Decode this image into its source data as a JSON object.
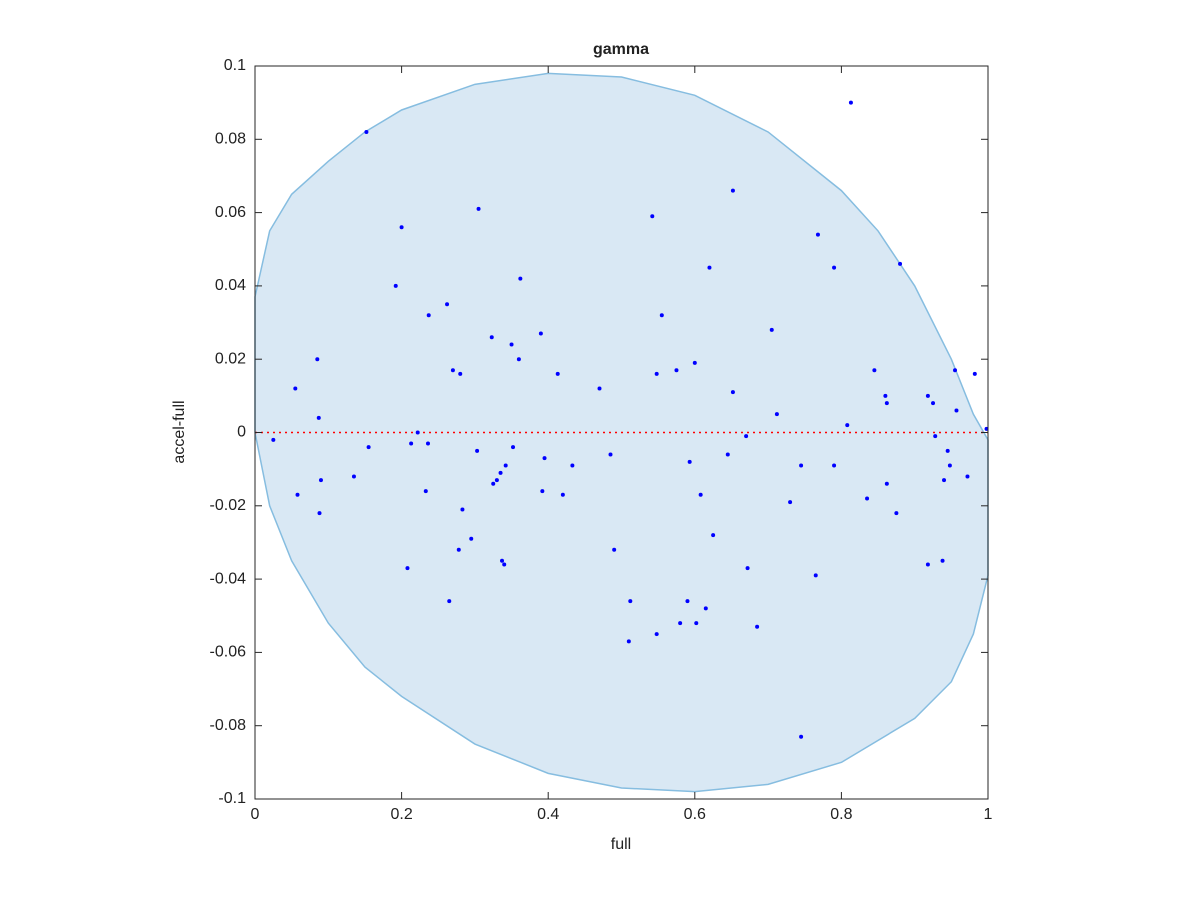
{
  "chart_data": {
    "type": "scatter",
    "title": "gamma",
    "x_label": "full",
    "y_label": "accel-full",
    "xlim": [
      0,
      1
    ],
    "ylim": [
      -0.1,
      0.1
    ],
    "xticks": [
      0,
      0.2,
      0.4,
      0.6,
      0.8,
      1
    ],
    "yticks": [
      -0.1,
      -0.08,
      -0.06,
      -0.04,
      -0.02,
      0,
      0.02,
      0.04,
      0.06,
      0.08,
      0.1
    ],
    "region": {
      "color": "#d9e8f4",
      "edge_color": "#86bde0",
      "x": [
        0,
        0.02,
        0.05,
        0.1,
        0.15,
        0.2,
        0.3,
        0.4,
        0.5,
        0.6,
        0.7,
        0.8,
        0.85,
        0.9,
        0.95,
        0.98,
        1,
        1,
        0.98,
        0.95,
        0.9,
        0.8,
        0.7,
        0.6,
        0.5,
        0.4,
        0.3,
        0.2,
        0.15,
        0.1,
        0.05,
        0.02,
        0
      ],
      "y": [
        0.037,
        0.055,
        0.065,
        0.074,
        0.082,
        0.088,
        0.095,
        0.098,
        0.097,
        0.092,
        0.082,
        0.066,
        0.055,
        0.04,
        0.02,
        0.005,
        -0.002,
        -0.039,
        -0.055,
        -0.068,
        -0.078,
        -0.09,
        -0.096,
        -0.098,
        -0.097,
        -0.093,
        -0.085,
        -0.072,
        -0.064,
        -0.052,
        -0.035,
        -0.02,
        0
      ]
    },
    "reference_line": {
      "y": 0,
      "color": "#ff0000"
    },
    "points": {
      "color": "#0000ff",
      "x": [
        0.025,
        0.055,
        0.058,
        0.085,
        0.087,
        0.088,
        0.09,
        0.135,
        0.152,
        0.155,
        0.192,
        0.2,
        0.208,
        0.213,
        0.222,
        0.233,
        0.236,
        0.237,
        0.262,
        0.265,
        0.27,
        0.278,
        0.28,
        0.283,
        0.295,
        0.303,
        0.305,
        0.323,
        0.325,
        0.33,
        0.335,
        0.337,
        0.34,
        0.342,
        0.35,
        0.352,
        0.36,
        0.362,
        0.39,
        0.392,
        0.395,
        0.413,
        0.42,
        0.433,
        0.47,
        0.485,
        0.49,
        0.51,
        0.512,
        0.542,
        0.548,
        0.548,
        0.555,
        0.575,
        0.58,
        0.59,
        0.593,
        0.6,
        0.602,
        0.608,
        0.615,
        0.62,
        0.625,
        0.645,
        0.652,
        0.652,
        0.67,
        0.672,
        0.685,
        0.705,
        0.712,
        0.73,
        0.745,
        0.745,
        0.765,
        0.768,
        0.79,
        0.79,
        0.808,
        0.813,
        0.835,
        0.845,
        0.86,
        0.862,
        0.862,
        0.875,
        0.88,
        0.918,
        0.918,
        0.925,
        0.928,
        0.938,
        0.94,
        0.945,
        0.948,
        0.955,
        0.957,
        0.972,
        0.982,
        0.998
      ],
      "y": [
        -0.002,
        0.012,
        -0.017,
        0.02,
        0.004,
        -0.022,
        -0.013,
        -0.012,
        0.082,
        -0.004,
        0.04,
        0.056,
        -0.037,
        -0.003,
        0.0,
        -0.016,
        -0.003,
        0.032,
        0.035,
        -0.046,
        0.017,
        -0.032,
        0.016,
        -0.021,
        -0.029,
        -0.005,
        0.061,
        0.026,
        -0.014,
        -0.013,
        -0.011,
        -0.035,
        -0.036,
        -0.009,
        0.024,
        -0.004,
        0.02,
        0.042,
        0.027,
        -0.016,
        -0.007,
        0.016,
        -0.017,
        -0.009,
        0.012,
        -0.006,
        -0.032,
        -0.057,
        -0.046,
        0.059,
        0.016,
        -0.055,
        0.032,
        0.017,
        -0.052,
        -0.046,
        -0.008,
        0.019,
        -0.052,
        -0.017,
        -0.048,
        0.045,
        -0.028,
        -0.006,
        0.066,
        0.011,
        -0.001,
        -0.037,
        -0.053,
        0.028,
        0.005,
        -0.019,
        -0.009,
        -0.083,
        -0.039,
        0.054,
        0.045,
        -0.009,
        0.002,
        0.09,
        -0.018,
        0.017,
        0.01,
        0.008,
        -0.014,
        -0.022,
        0.046,
        0.01,
        -0.036,
        0.008,
        -0.001,
        -0.035,
        -0.013,
        -0.005,
        -0.009,
        0.017,
        0.006,
        -0.012,
        0.016,
        0.001
      ]
    }
  }
}
